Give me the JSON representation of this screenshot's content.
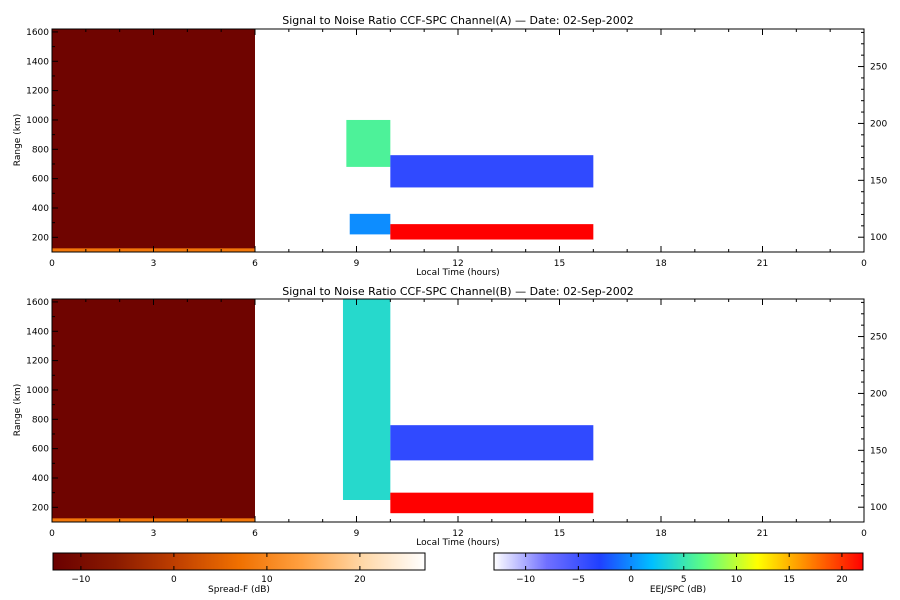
{
  "chart_data": [
    {
      "type": "heatmap",
      "title": "Signal to Noise Ratio CCF-SPC Channel(A) — Date: 02-Sep-2002",
      "xlabel": "Local Time (hours)",
      "ylabel": "Range (km)",
      "xlim": [
        0,
        24
      ],
      "ylim": [
        100,
        1620
      ],
      "xticks": [
        "0",
        "3",
        "6",
        "9",
        "12",
        "15",
        "18",
        "21",
        "0"
      ],
      "yticks": [
        "200",
        "400",
        "600",
        "800",
        "1000",
        "1200",
        "1400",
        "1600"
      ],
      "y2ticks": [
        "100",
        "150",
        "200",
        "250"
      ],
      "y2lim": [
        87,
        283
      ],
      "regions": [
        {
          "x": [
            0,
            6
          ],
          "y": [
            100,
            1620
          ],
          "snr_db": -12,
          "scale": "spread_f"
        },
        {
          "x": [
            0,
            6
          ],
          "y": [
            100,
            125
          ],
          "snr_db": 8,
          "scale": "spread_f"
        },
        {
          "x": [
            8.7,
            10
          ],
          "y": [
            680,
            1000
          ],
          "snr_db": 6,
          "scale": "eej"
        },
        {
          "x": [
            8.8,
            10
          ],
          "y": [
            220,
            360
          ],
          "snr_db": 0,
          "scale": "eej"
        },
        {
          "x": [
            10,
            16
          ],
          "y": [
            185,
            290
          ],
          "snr_db": 22,
          "scale": "eej"
        },
        {
          "x": [
            10,
            16
          ],
          "y": [
            540,
            760
          ],
          "snr_db": -4,
          "scale": "eej"
        }
      ]
    },
    {
      "type": "heatmap",
      "title": "Signal to Noise Ratio CCF-SPC Channel(B) — Date: 02-Sep-2002",
      "xlabel": "Local Time (hours)",
      "ylabel": "Range (km)",
      "xlim": [
        0,
        24
      ],
      "ylim": [
        100,
        1620
      ],
      "xticks": [
        "0",
        "3",
        "6",
        "9",
        "12",
        "15",
        "18",
        "21",
        "0"
      ],
      "yticks": [
        "200",
        "400",
        "600",
        "800",
        "1000",
        "1200",
        "1400",
        "1600"
      ],
      "y2ticks": [
        "100",
        "150",
        "200",
        "250"
      ],
      "y2lim": [
        87,
        283
      ],
      "regions": [
        {
          "x": [
            0,
            6
          ],
          "y": [
            100,
            1620
          ],
          "snr_db": -12,
          "scale": "spread_f"
        },
        {
          "x": [
            0,
            6
          ],
          "y": [
            100,
            125
          ],
          "snr_db": 8,
          "scale": "spread_f"
        },
        {
          "x": [
            8.6,
            10
          ],
          "y": [
            250,
            1620
          ],
          "snr_db": 4,
          "scale": "eej"
        },
        {
          "x": [
            10,
            16
          ],
          "y": [
            160,
            300
          ],
          "snr_db": 22,
          "scale": "eej"
        },
        {
          "x": [
            10,
            16
          ],
          "y": [
            520,
            760
          ],
          "snr_db": -4,
          "scale": "eej"
        }
      ]
    }
  ],
  "colorbars": [
    {
      "label": "Spread-F (dB)",
      "ticks": [
        "−10",
        "0",
        "10",
        "20"
      ],
      "range": [
        -13,
        27
      ],
      "colors": [
        "#6a0000",
        "#8a1a00",
        "#c04000",
        "#f07000",
        "#ffa040",
        "#ffd8a8",
        "#ffffff"
      ]
    },
    {
      "label": "EEJ/SPC (dB)",
      "ticks": [
        "−10",
        "−5",
        "0",
        "5",
        "10",
        "15",
        "20"
      ],
      "range": [
        -13,
        22
      ],
      "colors": [
        "#ffffff",
        "#7070ff",
        "#2040ff",
        "#00c0ff",
        "#60ff80",
        "#ffff00",
        "#ff8000",
        "#ff0000"
      ]
    }
  ]
}
